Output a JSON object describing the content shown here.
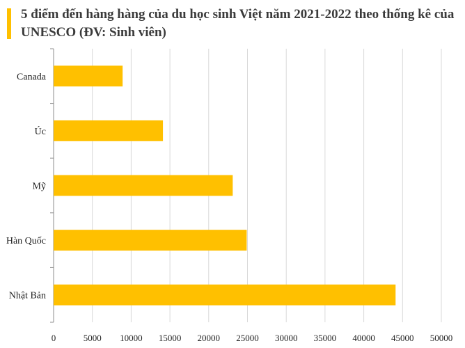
{
  "title": "5 điểm đến hàng hàng của du học sinh Việt năm 2021-2022 theo thống kê của UNESCO (ĐV: Sinh viên)",
  "colors": {
    "accent": "#FFC000",
    "bar": "#FFC000",
    "grid": "#d9d9d9",
    "axis": "#8c8c8c",
    "title": "#3a3a3a"
  },
  "chart_data": {
    "type": "bar",
    "orientation": "horizontal",
    "categories": [
      "Canada",
      "Úc",
      "Mỹ",
      "Hàn Quốc",
      "Nhật Bản"
    ],
    "values": [
      8900,
      14100,
      23100,
      24900,
      44100
    ],
    "xlim": [
      0,
      50000
    ],
    "xticks": [
      0,
      5000,
      10000,
      15000,
      20000,
      25000,
      30000,
      35000,
      40000,
      45000,
      50000
    ],
    "grid": "vertical",
    "legend": "none"
  }
}
